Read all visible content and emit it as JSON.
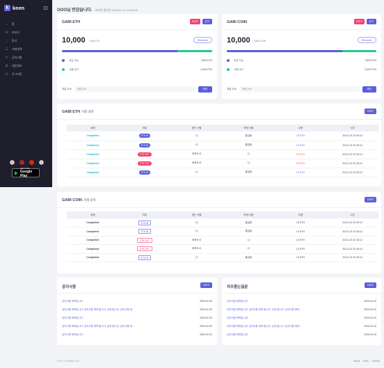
{
  "app": {
    "logo_mark": "k",
    "logo_text": "keen"
  },
  "sidebar": {
    "items": [
      {
        "label": "홈",
        "icon": "home-icon",
        "glyph": "⌂",
        "has_chevron": false
      },
      {
        "label": "보내기",
        "icon": "send-icon",
        "glyph": "✉",
        "has_chevron": false
      },
      {
        "label": "받기",
        "icon": "receive-icon",
        "glyph": "↓",
        "has_chevron": false
      },
      {
        "label": "거래내역",
        "icon": "history-icon",
        "glyph": "☷",
        "has_chevron": true
      },
      {
        "label": "공지사항",
        "icon": "notice-icon",
        "glyph": "✎",
        "has_chevron": true
      },
      {
        "label": "개인정보",
        "icon": "profile-icon",
        "glyph": "⚙",
        "has_chevron": false
      },
      {
        "label": "로그아웃",
        "icon": "logout-icon",
        "glyph": "⏻",
        "has_chevron": false
      }
    ],
    "flags": [
      {
        "name": "flag-korea-icon",
        "color": "#ffffff",
        "glyph": "●"
      },
      {
        "name": "flag-usa-icon",
        "color": "#b22234",
        "glyph": ""
      },
      {
        "name": "flag-china-icon",
        "color": "#de2910",
        "glyph": ""
      },
      {
        "name": "flag-japan-icon",
        "color": "#ffffff",
        "glyph": "●"
      }
    ],
    "google_play": {
      "small": "GET IT ON",
      "large": "Google Play"
    }
  },
  "header": {
    "greeting": "OOO님 반갑습니다.",
    "last_login": "마지막 접속일 2020-01-21 13:15:00"
  },
  "wallets": [
    {
      "title": "GABI ETH",
      "btn_send": "보내기",
      "btn_receive": "받기",
      "amount": "10,000",
      "unit": "Total ETH",
      "network": "Ethereum",
      "available_ratio": 0.77,
      "available_label": "지갑 가능",
      "available_value": "7,800 ETH",
      "used_label": "사용 대기",
      "used_value": "2,000 ETH",
      "send_label": "지갑 주소",
      "send_placeholder": "지갑 주소",
      "send_button": "확인"
    },
    {
      "title": "GABI COIN",
      "btn_send": "보내기",
      "btn_receive": "받기",
      "amount": "10,000",
      "unit": "Total COIN",
      "network": "Ethereum",
      "available_ratio": 0.77,
      "available_label": "지갑 가능",
      "available_value": "7,800 ETH",
      "used_label": "사용 대기",
      "used_value": "2,000 ETH",
      "send_label": "지갑 주소",
      "send_placeholder": "지갑 주소",
      "send_button": "확인"
    }
  ],
  "colors": {
    "accent": "#5b5fd9",
    "pink": "#f1416c",
    "teal": "#20c997",
    "sidebar": "#1e1e2d"
  },
  "eth_history": {
    "title": "GABI ETH",
    "title_suffix": "거래 내역",
    "more": "더보기",
    "columns": [
      "상태",
      "타입",
      "받는 사람",
      "보낸 사람",
      "수량",
      "시간"
    ],
    "rows": [
      {
        "status": "Completed",
        "type": "ETH IN",
        "kind": "in",
        "to": "나",
        "from": "홍길동",
        "amount": "10 ETH",
        "time": "20-01-22 22:16:12"
      },
      {
        "status": "Completed",
        "type": "ETH IN",
        "kind": "in",
        "to": "나",
        "from": "홍길동",
        "amount": "10 ETH",
        "time": "20-01-22 22:16:12"
      },
      {
        "status": "Completed",
        "type": "ETH OUT",
        "kind": "out",
        "to": "바후도사",
        "from": "나",
        "amount": "10 ETH",
        "time": "20-01-22 22:16:12"
      },
      {
        "status": "Completed",
        "type": "ETH OUT",
        "kind": "out",
        "to": "바후도사",
        "from": "나",
        "amount": "10 ETH",
        "time": "20-01-22 22:16:12"
      },
      {
        "status": "Completed",
        "type": "ETH IN",
        "kind": "in",
        "to": "나",
        "from": "홍길동",
        "amount": "10 ETH",
        "time": "20-01-22 22:16:12"
      }
    ]
  },
  "coin_history": {
    "title": "GABI COIN",
    "title_suffix": "거래 내역",
    "more": "더보기",
    "columns": [
      "상태",
      "타입",
      "받는 사람",
      "보낸 사람",
      "수량",
      "시간"
    ],
    "rows": [
      {
        "status": "Completed",
        "type": "ETH IN",
        "kind": "in",
        "to": "나",
        "from": "홍길동",
        "amount": "10 ETH",
        "time": "20-01-22 22:16:12"
      },
      {
        "status": "Completed",
        "type": "ETH IN",
        "kind": "in",
        "to": "나",
        "from": "홍길동",
        "amount": "10 ETH",
        "time": "20-01-22 22:16:12"
      },
      {
        "status": "Completed",
        "type": "ETH OUT",
        "kind": "out",
        "to": "바후도사",
        "from": "나",
        "amount": "10 ETH",
        "time": "20-01-22 22:16:12"
      },
      {
        "status": "Completed",
        "type": "ETH OUT",
        "kind": "out",
        "to": "바후도사",
        "from": "나",
        "amount": "10 ETH",
        "time": "20-01-22 22:16:12"
      },
      {
        "status": "Completed",
        "type": "ETH IN",
        "kind": "in",
        "to": "나",
        "from": "홍길동",
        "amount": "10 ETH",
        "time": "20-01-22 22:16:12"
      }
    ]
  },
  "notices": {
    "title": "공지사항",
    "more": "더보기",
    "items": [
      {
        "text": "공지사항 제목입니다.",
        "date": "2020-02-20"
      },
      {
        "text": "공지사항 제목입니다. 공지사항 제목 잠니다. 길게 잠니다. 공지사항 제...",
        "date": "2020-02-20"
      },
      {
        "text": "공지사항 제목입니다.",
        "date": "2020-02-20"
      },
      {
        "text": "공지사항 제목입니다. 공지사항 제목 잠니다. 길게 잠니다. 공지사항 제...",
        "date": "2020-02-20"
      },
      {
        "text": "공지사항 제목입니다.",
        "date": "2020-02-20"
      }
    ]
  },
  "faq": {
    "title": "자주묻는질문",
    "more": "더보기",
    "items": [
      {
        "text": "공지사항 제목입니다.",
        "date": "2020-02-20"
      },
      {
        "text": "공지사항 제목입니다. 공지사항 제목 잠니다. 길게 잠니다. 공지사항 제목...",
        "date": "2020-02-20"
      },
      {
        "text": "공지사항 제목입니다.",
        "date": "2020-02-20"
      },
      {
        "text": "공지사항 제목입니다. 공지사항 제목 잠니다. 길게 잠니다. 공지사항 제목...",
        "date": "2020-02-20"
      },
      {
        "text": "공지사항 제목입니다.",
        "date": "2020-02-20"
      }
    ]
  },
  "footer": {
    "copyright": "2020 © website-inno",
    "links": [
      "About",
      "Team",
      "Contact"
    ]
  }
}
